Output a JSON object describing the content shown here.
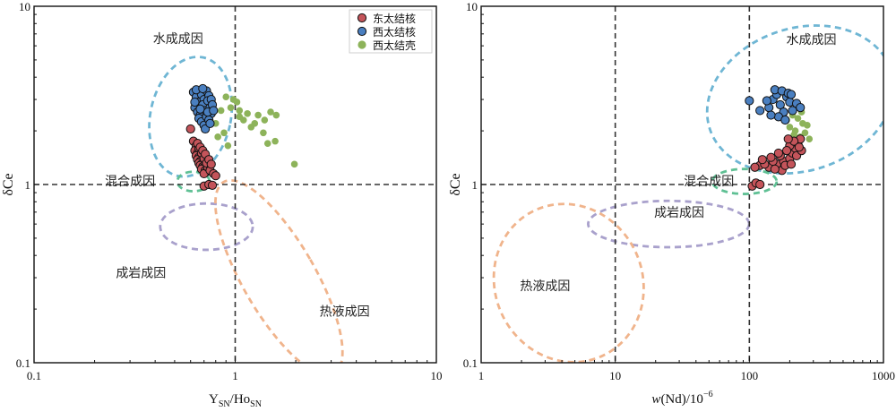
{
  "chart_data": [
    {
      "type": "scatter",
      "x_scale": "log",
      "y_scale": "log",
      "xlim": [
        0.1,
        10
      ],
      "ylim": [
        0.1,
        10
      ],
      "x_ticks": [
        0.1,
        1,
        10
      ],
      "x_tick_labels": [
        "0.1",
        "1",
        "10"
      ],
      "y_ticks": [
        0.1,
        1,
        10
      ],
      "y_tick_labels": [
        "0.1",
        "1",
        "10"
      ],
      "xlabel": "Y",
      "xlabel_sub1": "SN",
      "xlabel_mid": "/Ho",
      "xlabel_sub2": "SN",
      "ylabel": "δCe",
      "reference_lines": {
        "x": 1,
        "y": 1
      },
      "legend": {
        "placement": "top-right",
        "entries": [
          {
            "label": "东太结核",
            "color": "#c4545a",
            "marker": "circle-outlined"
          },
          {
            "label": "西太结核",
            "color": "#4a7fc0",
            "marker": "circle-outlined"
          },
          {
            "label": "西太结壳",
            "color": "#8db35a",
            "marker": "circle"
          }
        ]
      },
      "regions": [
        {
          "label": "水成成因",
          "color": "#6fb6d4",
          "center": [
            0.6,
            2.4
          ],
          "rx_dec": 0.2,
          "ry_dec": 0.34,
          "rot": 12,
          "label_pos": [
            0.52,
            6.6
          ]
        },
        {
          "label": "混合成因",
          "color": "#5fc094",
          "center": [
            0.62,
            1.04
          ],
          "rx_dec": 0.08,
          "ry_dec": 0.055,
          "rot": 0,
          "label_pos": [
            0.3,
            1.05
          ]
        },
        {
          "label": "成岩成因",
          "color": "#a9a1cc",
          "center": [
            0.72,
            0.58
          ],
          "rx_dec": 0.23,
          "ry_dec": 0.13,
          "rot": 0,
          "label_pos": [
            0.34,
            0.32
          ]
        },
        {
          "label": "热液成因",
          "color": "#f0b48c",
          "center": [
            1.65,
            0.3
          ],
          "rx_dec": 0.18,
          "ry_dec": 0.62,
          "rot": -30,
          "label_pos": [
            3.5,
            0.195
          ]
        }
      ],
      "series": [
        {
          "name": "东太结核",
          "points": [
            [
              0.6,
              2.05
            ],
            [
              0.62,
              1.75
            ],
            [
              0.64,
              1.65
            ],
            [
              0.63,
              1.55
            ],
            [
              0.65,
              1.5
            ],
            [
              0.64,
              1.45
            ],
            [
              0.66,
              1.42
            ],
            [
              0.65,
              1.38
            ],
            [
              0.67,
              1.35
            ],
            [
              0.66,
              1.32
            ],
            [
              0.68,
              1.3
            ],
            [
              0.67,
              1.28
            ],
            [
              0.69,
              1.26
            ],
            [
              0.7,
              1.25
            ],
            [
              0.68,
              1.22
            ],
            [
              0.71,
              1.2
            ],
            [
              0.72,
              1.18
            ],
            [
              0.7,
              1.15
            ],
            [
              0.73,
              1.25
            ],
            [
              0.75,
              1.2
            ],
            [
              0.78,
              1.15
            ],
            [
              0.8,
              1.12
            ],
            [
              0.66,
              1.6
            ],
            [
              0.68,
              1.5
            ],
            [
              0.7,
              1.4
            ],
            [
              0.72,
              1.32
            ],
            [
              0.65,
              1.7
            ],
            [
              0.67,
              1.62
            ],
            [
              0.69,
              1.55
            ],
            [
              0.71,
              1.48
            ],
            [
              0.74,
              1.38
            ],
            [
              0.76,
              1.3
            ],
            [
              0.7,
              0.98
            ],
            [
              0.74,
              1.0
            ],
            [
              0.77,
              0.99
            ]
          ]
        },
        {
          "name": "西太结核",
          "points": [
            [
              0.62,
              3.3
            ],
            [
              0.64,
              3.1
            ],
            [
              0.66,
              2.9
            ],
            [
              0.63,
              2.7
            ],
            [
              0.65,
              2.55
            ],
            [
              0.67,
              2.45
            ],
            [
              0.68,
              3.2
            ],
            [
              0.7,
              3.0
            ],
            [
              0.69,
              2.8
            ],
            [
              0.71,
              2.6
            ],
            [
              0.72,
              3.35
            ],
            [
              0.74,
              3.15
            ],
            [
              0.73,
              2.95
            ],
            [
              0.75,
              2.7
            ],
            [
              0.76,
              2.5
            ],
            [
              0.66,
              2.35
            ],
            [
              0.68,
              2.25
            ],
            [
              0.7,
              2.15
            ],
            [
              0.72,
              2.4
            ],
            [
              0.74,
              2.3
            ],
            [
              0.76,
              3.0
            ],
            [
              0.77,
              2.8
            ],
            [
              0.64,
              3.4
            ],
            [
              0.69,
              3.45
            ],
            [
              0.71,
              2.05
            ],
            [
              0.67,
              2.65
            ],
            [
              0.73,
              2.55
            ],
            [
              0.75,
              2.2
            ],
            [
              0.63,
              2.9
            ],
            [
              0.78,
              2.6
            ]
          ]
        },
        {
          "name": "西太结壳",
          "points": [
            [
              0.9,
              3.1
            ],
            [
              0.98,
              3.0
            ],
            [
              1.02,
              2.9
            ],
            [
              0.95,
              2.7
            ],
            [
              1.05,
              2.6
            ],
            [
              1.15,
              2.5
            ],
            [
              1.3,
              2.45
            ],
            [
              1.5,
              2.55
            ],
            [
              1.6,
              2.45
            ],
            [
              1.4,
              2.3
            ],
            [
              1.25,
              2.2
            ],
            [
              1.1,
              2.3
            ],
            [
              1.2,
              2.1
            ],
            [
              1.05,
              2.4
            ],
            [
              0.85,
              2.6
            ],
            [
              0.8,
              2.2
            ],
            [
              0.88,
              1.95
            ],
            [
              0.82,
              1.85
            ],
            [
              1.38,
              1.95
            ],
            [
              1.45,
              1.7
            ],
            [
              1.58,
              1.75
            ],
            [
              0.92,
              1.65
            ],
            [
              1.97,
              1.3
            ]
          ]
        }
      ]
    },
    {
      "type": "scatter",
      "x_scale": "log",
      "y_scale": "log",
      "xlim": [
        1,
        1000
      ],
      "ylim": [
        0.1,
        10
      ],
      "x_ticks": [
        1,
        10,
        100,
        1000
      ],
      "x_tick_labels": [
        "1",
        "10",
        "100",
        "1000"
      ],
      "y_ticks": [
        0.1,
        1,
        10
      ],
      "y_tick_labels": [
        "0.1",
        "1",
        "10"
      ],
      "xlabel": "w(Nd)/10",
      "xlabel_sup": "−6",
      "ylabel": "δCe",
      "reference_lines": {
        "x": [
          10,
          100
        ],
        "y": 1
      },
      "regions": [
        {
          "label": "水成成因",
          "color": "#6fb6d4",
          "center": [
            240,
            3.0
          ],
          "rx_dec": 0.71,
          "ry_dec": 0.4,
          "rot": -18,
          "label_pos": [
            290,
            6.5
          ]
        },
        {
          "label": "混合成因",
          "color": "#5fc094",
          "center": [
            92,
            1.04
          ],
          "rx_dec": 0.24,
          "ry_dec": 0.07,
          "rot": 0,
          "label_pos": [
            50,
            1.05
          ]
        },
        {
          "label": "成岩成因",
          "color": "#a9a1cc",
          "center": [
            25,
            0.6
          ],
          "rx_dec": 0.6,
          "ry_dec": 0.13,
          "rot": 0,
          "label_pos": [
            30,
            0.7
          ]
        },
        {
          "label": "热液成因",
          "color": "#f0b48c",
          "center": [
            4.5,
            0.28
          ],
          "rx_dec": 0.55,
          "ry_dec": 0.45,
          "rot": -25,
          "label_pos": [
            3.0,
            0.27
          ]
        }
      ],
      "series": [
        {
          "name": "东太结核",
          "points": [
            [
              120,
              1.28
            ],
            [
              140,
              1.25
            ],
            [
              160,
              1.3
            ],
            [
              180,
              1.35
            ],
            [
              200,
              1.4
            ],
            [
              210,
              1.5
            ],
            [
              220,
              1.6
            ],
            [
              230,
              1.7
            ],
            [
              240,
              1.8
            ],
            [
              200,
              1.65
            ],
            [
              190,
              1.55
            ],
            [
              170,
              1.45
            ],
            [
              150,
              1.35
            ],
            [
              130,
              1.3
            ],
            [
              110,
              1.25
            ],
            [
              175,
              1.2
            ],
            [
              155,
              1.22
            ],
            [
              185,
              1.28
            ],
            [
              205,
              1.3
            ],
            [
              225,
              1.45
            ],
            [
              245,
              1.55
            ],
            [
              215,
              1.75
            ],
            [
              195,
              1.8
            ],
            [
              235,
              1.62
            ],
            [
              165,
              1.5
            ],
            [
              145,
              1.42
            ],
            [
              125,
              1.38
            ],
            [
              105,
              0.98
            ],
            [
              112,
              1.02
            ],
            [
              120,
              1.0
            ]
          ]
        },
        {
          "name": "西太结核",
          "points": [
            [
              100,
              2.95
            ],
            [
              120,
              2.6
            ],
            [
              140,
              2.7
            ],
            [
              150,
              3.0
            ],
            [
              160,
              3.2
            ],
            [
              170,
              2.8
            ],
            [
              180,
              2.55
            ],
            [
              190,
              3.1
            ],
            [
              200,
              2.9
            ],
            [
              210,
              2.6
            ],
            [
              165,
              2.4
            ],
            [
              145,
              2.45
            ],
            [
              155,
              3.4
            ],
            [
              175,
              3.35
            ],
            [
              195,
              3.25
            ],
            [
              225,
              2.85
            ],
            [
              240,
              2.7
            ],
            [
              185,
              2.3
            ],
            [
              135,
              2.95
            ],
            [
              205,
              3.2
            ]
          ]
        },
        {
          "name": "西太结壳",
          "points": [
            [
              190,
              2.3
            ],
            [
              210,
              2.45
            ],
            [
              230,
              2.35
            ],
            [
              250,
              2.2
            ],
            [
              220,
              2.0
            ],
            [
              240,
              1.85
            ],
            [
              260,
              1.95
            ],
            [
              280,
              1.8
            ],
            [
              270,
              2.15
            ],
            [
              200,
              2.1
            ],
            [
              215,
              1.9
            ],
            [
              245,
              2.55
            ],
            [
              175,
              2.5
            ]
          ]
        }
      ]
    }
  ]
}
